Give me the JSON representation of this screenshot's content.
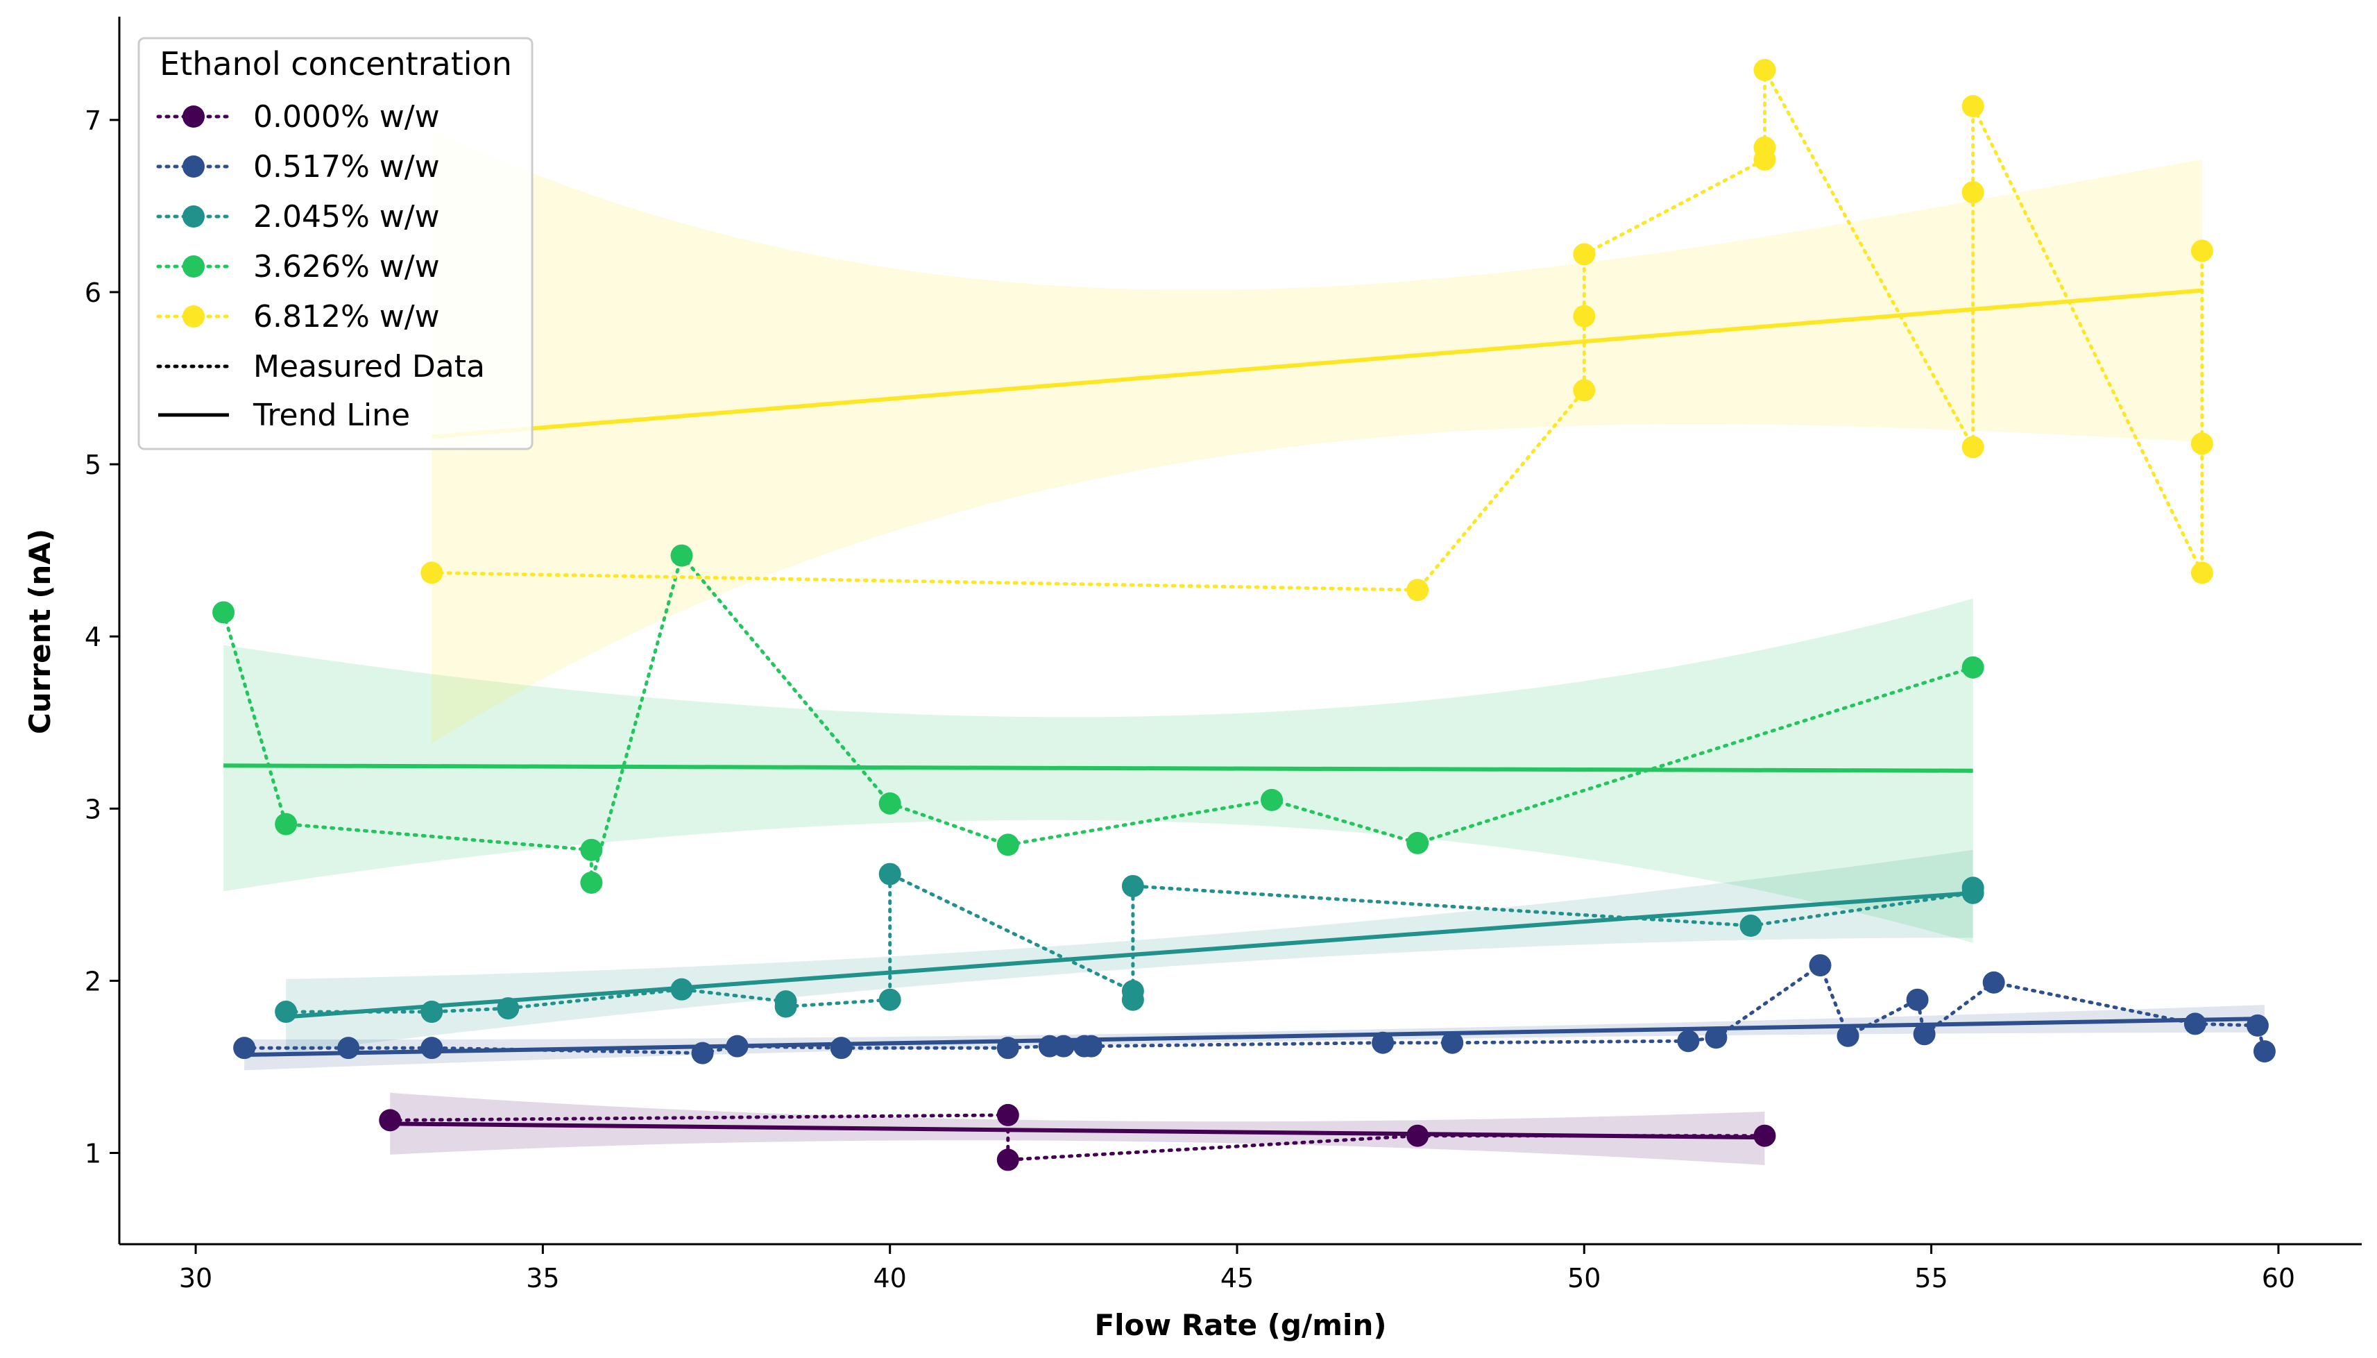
{
  "chart_data": {
    "type": "line",
    "title": "",
    "xlabel": "Flow Rate (g/min)",
    "ylabel": "Current (nA)",
    "xlim": [
      28.9,
      61.2
    ],
    "ylim": [
      0.47,
      7.6
    ],
    "xticks": [
      "30",
      "35",
      "40",
      "45",
      "50",
      "55",
      "60"
    ],
    "yticks": [
      "1",
      "2",
      "3",
      "4",
      "5",
      "6",
      "7"
    ],
    "grid": false,
    "legend": {
      "title": "Ethanol concentration",
      "placement": "top-left",
      "style_entries": [
        {
          "label": "Measured Data",
          "style": "dotted"
        },
        {
          "label": "Trend Line",
          "style": "solid"
        }
      ]
    },
    "series": [
      {
        "name": "0.000%  w/w",
        "color": "#440154",
        "x": [
          32.8,
          41.7,
          41.7,
          47.6,
          52.6
        ],
        "y": [
          1.19,
          1.22,
          0.96,
          1.1,
          1.1
        ],
        "trend": {
          "x": [
            32.8,
            52.6
          ],
          "y": [
            1.17,
            1.09
          ]
        },
        "band": {
          "x": [
            32.8,
            52.6
          ],
          "lower": [
            0.99,
            0.93
          ],
          "upper": [
            1.35,
            1.24
          ]
        }
      },
      {
        "name": "0.517%  w/w",
        "color": "#2d4f8e",
        "x": [
          30.7,
          32.2,
          33.4,
          37.3,
          37.8,
          39.3,
          41.7,
          42.3,
          42.5,
          42.8,
          42.9,
          47.1,
          48.1,
          51.5,
          51.9,
          53.4,
          53.8,
          54.8,
          54.9,
          55.9,
          58.8,
          59.7,
          59.8
        ],
        "y": [
          1.61,
          1.61,
          1.61,
          1.58,
          1.62,
          1.61,
          1.61,
          1.62,
          1.62,
          1.62,
          1.62,
          1.64,
          1.64,
          1.65,
          1.67,
          2.09,
          1.68,
          1.89,
          1.69,
          1.99,
          1.75,
          1.74,
          1.59
        ],
        "trend": {
          "x": [
            30.7,
            59.8
          ],
          "y": [
            1.57,
            1.78
          ]
        },
        "band": {
          "x": [
            30.7,
            59.8
          ],
          "lower": [
            1.48,
            1.7
          ],
          "upper": [
            1.66,
            1.86
          ]
        }
      },
      {
        "name": "2.045%  w/w",
        "color": "#21918c",
        "x": [
          31.3,
          33.4,
          34.5,
          37.0,
          38.5,
          38.5,
          40.0,
          40.0,
          43.5,
          43.5,
          43.5,
          52.4,
          55.6,
          55.6
        ],
        "y": [
          1.82,
          1.82,
          1.84,
          1.95,
          1.88,
          1.85,
          1.89,
          2.62,
          1.94,
          1.89,
          2.55,
          2.32,
          2.51,
          2.54
        ],
        "trend": {
          "x": [
            31.3,
            55.6
          ],
          "y": [
            1.79,
            2.51
          ]
        },
        "band": {
          "x": [
            31.3,
            55.6
          ],
          "lower": [
            1.58,
            2.25
          ],
          "upper": [
            2.01,
            2.76
          ]
        }
      },
      {
        "name": "3.626%  w/w",
        "color": "#22c55e",
        "x": [
          30.4,
          31.3,
          35.7,
          35.7,
          37.0,
          40.0,
          41.7,
          45.5,
          47.6,
          55.6
        ],
        "y": [
          4.14,
          2.91,
          2.76,
          2.57,
          4.47,
          3.03,
          2.79,
          3.05,
          2.8,
          3.82
        ],
        "trend": {
          "x": [
            30.4,
            55.6
          ],
          "y": [
            3.25,
            3.22
          ]
        },
        "band": {
          "x": [
            30.4,
            55.6
          ],
          "lower": [
            2.52,
            2.22
          ],
          "upper": [
            3.95,
            4.22
          ]
        }
      },
      {
        "name": "6.812%  w/w",
        "color": "#fde725",
        "x": [
          33.4,
          47.6,
          50.0,
          50.0,
          50.0,
          52.6,
          52.6,
          52.6,
          55.6,
          55.6,
          55.6,
          58.9,
          58.9,
          58.9
        ],
        "y": [
          4.37,
          4.27,
          5.43,
          5.86,
          6.22,
          6.77,
          6.84,
          7.29,
          5.1,
          6.58,
          7.08,
          4.37,
          5.12,
          6.24
        ],
        "trend": {
          "x": [
            33.4,
            58.9
          ],
          "y": [
            5.16,
            6.01
          ]
        },
        "band": {
          "x": [
            33.4,
            58.9
          ],
          "lower": [
            3.38,
            5.13
          ],
          "upper": [
            6.94,
            6.77
          ]
        }
      }
    ]
  }
}
